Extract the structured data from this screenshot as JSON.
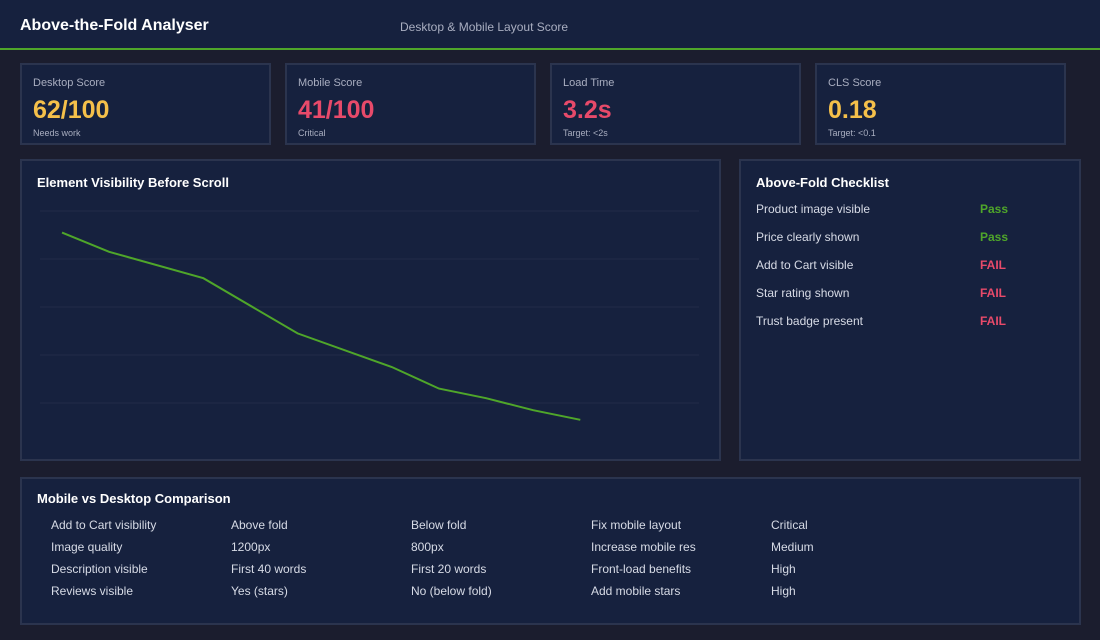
{
  "header": {
    "title": "Above-the-Fold Analyser",
    "subtitle": "Desktop & Mobile Layout Score"
  },
  "kpis": [
    {
      "label": "Desktop Score",
      "value": "62/100",
      "note": "Needs work",
      "color": "#f5c04a"
    },
    {
      "label": "Mobile Score",
      "value": "41/100",
      "note": "Critical",
      "color": "#e84a6a"
    },
    {
      "label": "Load Time",
      "value": "3.2s",
      "note": "Target: <2s",
      "color": "#e84a6a"
    },
    {
      "label": "CLS Score",
      "value": "0.18",
      "note": "Target: <0.1",
      "color": "#f5c04a"
    }
  ],
  "chart": {
    "title": "Element Visibility Before Scroll",
    "chart_data": {
      "type": "line",
      "title": "Element Visibility Before Scroll",
      "grid": true,
      "ylim": [
        0,
        100
      ],
      "series": [
        {
          "values": [
            91,
            83,
            72,
            49,
            35,
            26,
            22,
            17,
            13
          ],
          "x": [
            0,
            1,
            3,
            5,
            7,
            8,
            9,
            10,
            11
          ],
          "color": "#4fa62a"
        }
      ]
    }
  },
  "checklist": {
    "title": "Above-Fold Checklist",
    "items": [
      {
        "label": "Product image visible",
        "status": "Pass",
        "color": "#4fa62a"
      },
      {
        "label": "Price clearly shown",
        "status": "Pass",
        "color": "#4fa62a"
      },
      {
        "label": "Add to Cart visible",
        "status": "FAIL",
        "color": "#e84a6a"
      },
      {
        "label": "Star rating shown",
        "status": "FAIL",
        "color": "#e84a6a"
      },
      {
        "label": "Trust badge present",
        "status": "FAIL",
        "color": "#e84a6a"
      }
    ]
  },
  "comparison": {
    "title": "Mobile vs Desktop Comparison",
    "rows": [
      [
        "Add to Cart visibility",
        "Above fold",
        "Below fold",
        "Fix mobile layout",
        "Critical"
      ],
      [
        "Image quality",
        "1200px",
        "800px",
        "Increase mobile res",
        "Medium"
      ],
      [
        "Description visible",
        "First 40 words",
        "First 20 words",
        "Front-load benefits",
        "High"
      ],
      [
        "Reviews visible",
        "Yes (stars)",
        "No (below fold)",
        "Add mobile stars",
        "High"
      ]
    ]
  }
}
